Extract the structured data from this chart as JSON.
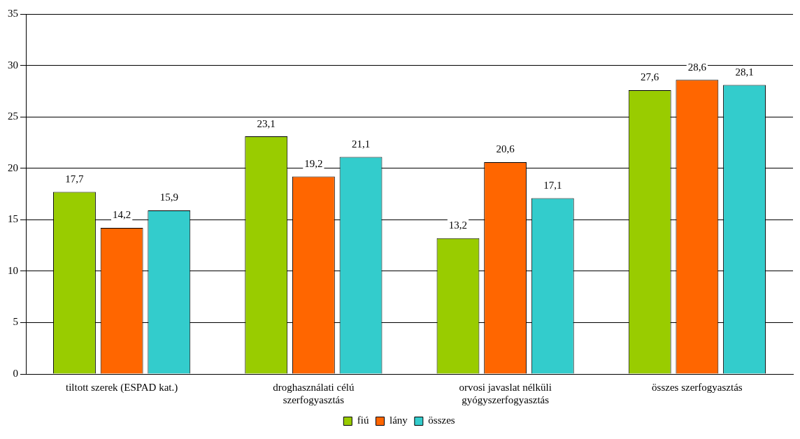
{
  "chart_data": {
    "type": "bar",
    "categories": [
      "tiltott szerek (ESPAD kat.)",
      "droghasználati célú szerfogyasztás",
      "orvosi javaslat nélküli gyógyszerfogyasztás",
      "összes szerfogyasztás"
    ],
    "series": [
      {
        "name": "fiú",
        "color": "#99cc00",
        "values": [
          17.7,
          23.1,
          13.2,
          27.6
        ],
        "value_labels": [
          "17,7",
          "23,1",
          "13,2",
          "27,6"
        ]
      },
      {
        "name": "lány",
        "color": "#ff6600",
        "values": [
          14.2,
          19.2,
          20.6,
          28.6
        ],
        "value_labels": [
          "14,2",
          "19,2",
          "20,6",
          "28,6"
        ]
      },
      {
        "name": "összes",
        "color": "#33cccc",
        "values": [
          15.9,
          21.1,
          17.1,
          28.1
        ],
        "value_labels": [
          "15,9",
          "21,1",
          "17,1",
          "28,1"
        ]
      }
    ],
    "ylim": [
      0,
      35
    ],
    "yticks": [
      0,
      5,
      10,
      15,
      20,
      25,
      30,
      35
    ],
    "grid": "y",
    "legend": "bottom"
  }
}
